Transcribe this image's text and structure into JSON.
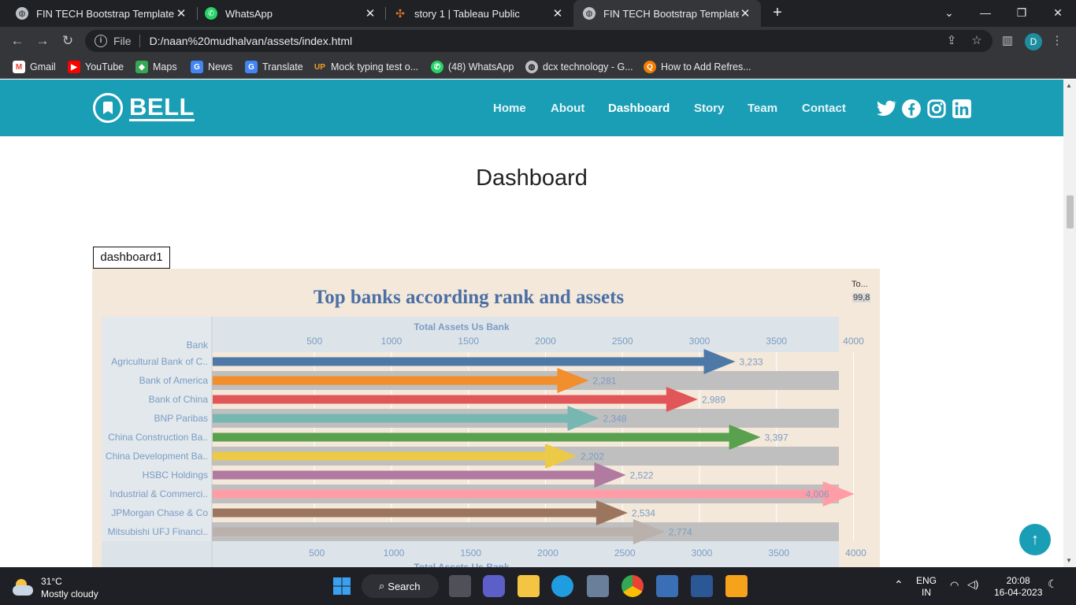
{
  "browser": {
    "tabs": [
      {
        "title": "FIN TECH Bootstrap Template",
        "active": false
      },
      {
        "title": "WhatsApp",
        "active": false
      },
      {
        "title": "story 1 | Tableau Public",
        "active": false
      },
      {
        "title": "FIN TECH Bootstrap Template",
        "active": true
      }
    ],
    "address_prefix": "File",
    "url": "D:/naan%20mudhalvan/assets/index.html",
    "profile_initial": "D",
    "bookmarks": [
      "Gmail",
      "YouTube",
      "Maps",
      "News",
      "Translate",
      "Mock typing test o...",
      "(48) WhatsApp",
      "dcx technology - G...",
      "How to Add Refres..."
    ]
  },
  "site": {
    "logo": "BELL",
    "nav": [
      "Home",
      "About",
      "Dashboard",
      "Story",
      "Team",
      "Contact"
    ],
    "active_nav": "Dashboard",
    "section_title": "Dashboard",
    "viz_label": "dashboard1",
    "side_legend_title": "To...",
    "side_legend_value": "99,8",
    "accent": "#1a9eb5"
  },
  "chart_data": {
    "type": "bar",
    "title": "Top banks according rank and assets",
    "xlabel": "Total Assets Us Bank",
    "ylabel": "Bank",
    "xticks": [
      "500",
      "1000",
      "1500",
      "2000",
      "2500",
      "3000",
      "3500",
      "4000"
    ],
    "categories": [
      "Agricultural Bank of C..",
      "Bank of America",
      "Bank of China",
      "BNP Paribas",
      "China Construction Ba..",
      "China Development Ba..",
      "HSBC Holdings",
      "Industrial & Commerci..",
      "JPMorgan Chase & Co",
      "Mitsubishi UFJ Financi.."
    ],
    "values": [
      3233,
      2281,
      2989,
      2348,
      3397,
      2202,
      2522,
      4006,
      2534,
      2774
    ],
    "labels": [
      "3,233",
      "2,281",
      "2,989",
      "2,348",
      "3,397",
      "2,202",
      "2,522",
      "4,006",
      "2,534",
      "2,774"
    ],
    "colors": [
      "#4e79a7",
      "#f28e2b",
      "#e15759",
      "#76b7b2",
      "#59a14f",
      "#edc948",
      "#b07aa1",
      "#ff9da7",
      "#9c755f",
      "#bab0ac"
    ],
    "xlim": [
      0,
      4200
    ]
  },
  "taskbar": {
    "temp": "31°C",
    "weather": "Mostly cloudy",
    "search": "Search",
    "lang": "ENG",
    "region": "IN",
    "time": "20:08",
    "date": "16-04-2023"
  }
}
